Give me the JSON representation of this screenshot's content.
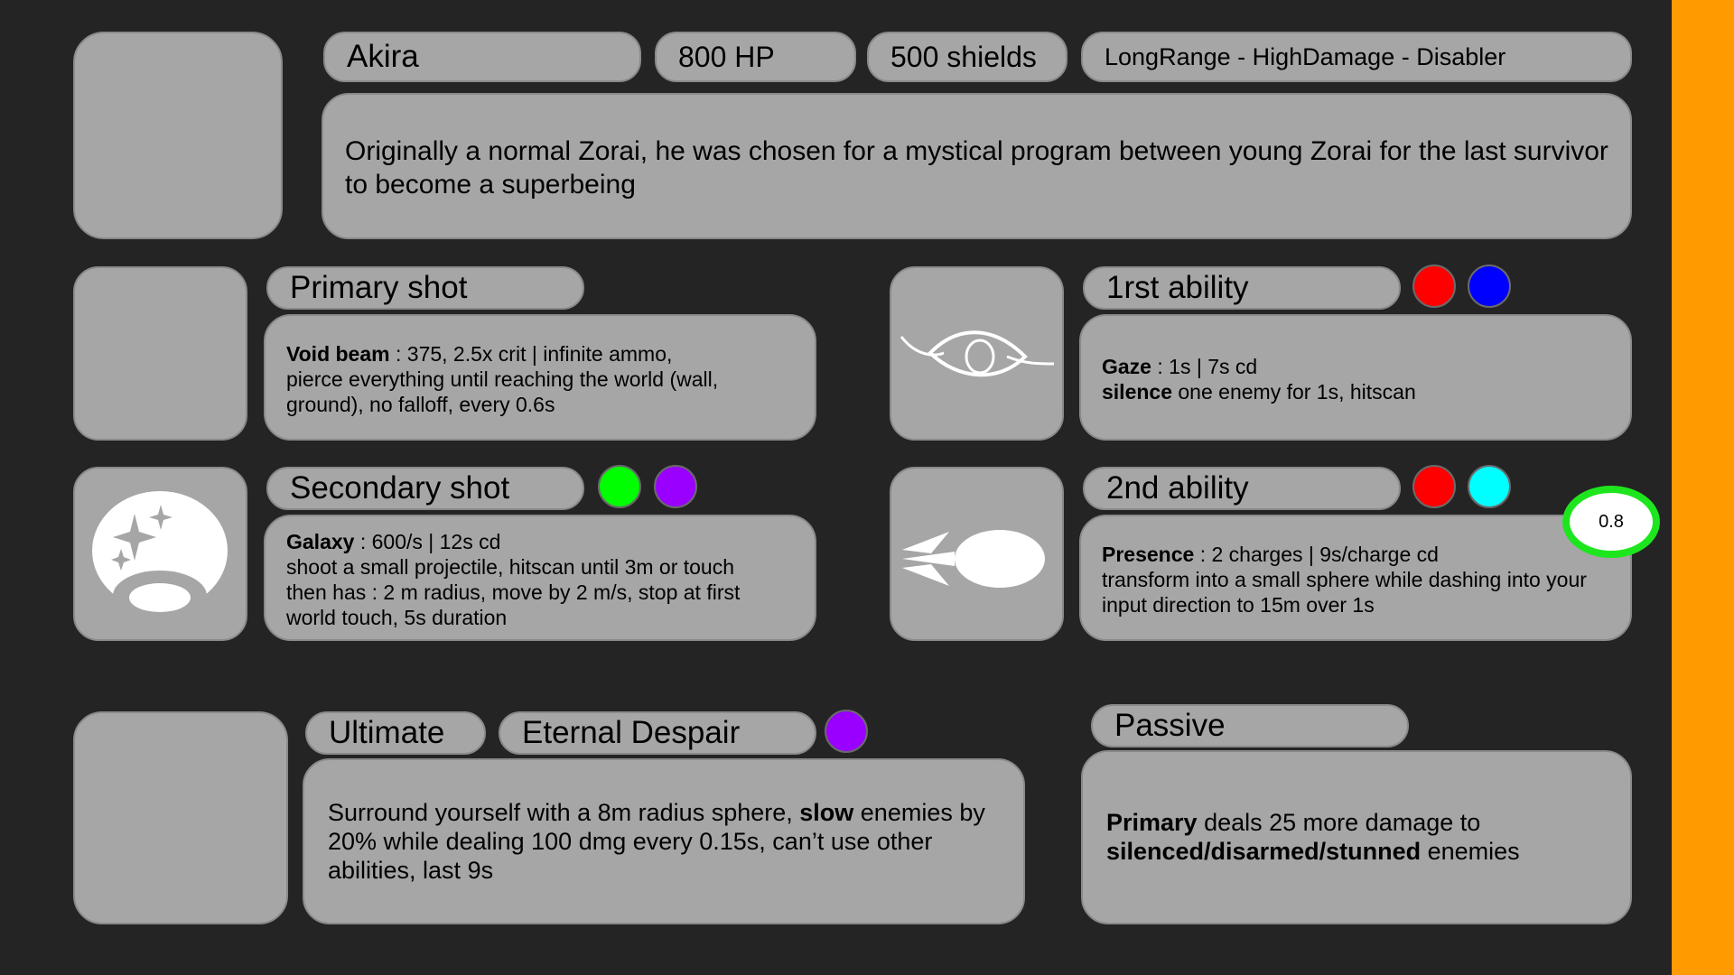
{
  "header": {
    "name": "Akira",
    "hp": "800 HP",
    "shields": "500 shields",
    "tags": "LongRange - HighDamage - Disabler",
    "lore": "Originally a normal Zorai, he was chosen for a mystical program between young Zorai for the last survivor to become a superbeing"
  },
  "primary": {
    "title": "Primary shot",
    "name": "Void beam",
    "line1_rest": " : 375, 2.5x crit | infinite ammo,",
    "line2": "pierce everything until reaching the world (wall,",
    "line3": "ground), no falloff, every 0.6s"
  },
  "secondary": {
    "title": "Secondary shot",
    "name": "Galaxy",
    "line1_rest": " : 600/s | 12s cd",
    "line2": "shoot a small projectile, hitscan until 3m or touch",
    "line3": "then has : 2 m radius, move by 2 m/s, stop at first",
    "line4": "world touch, 5s duration",
    "colors": [
      "#00ff00",
      "#9900ff"
    ]
  },
  "ability1": {
    "title": "1rst ability",
    "name": "Gaze",
    "line1_rest": " : 1s | 7s cd",
    "effect": "silence",
    "effect_rest": " one enemy for 1s, hitscan",
    "colors": [
      "#ff0000",
      "#0000ff"
    ],
    "icon": "eye-icon"
  },
  "ability2": {
    "title": "2nd ability",
    "name": "Presence",
    "line1_rest": " : 2 charges | 9s/charge cd",
    "line2": "transform into a small sphere while dashing into your",
    "line3": "input direction to 15m over 1s",
    "colors": [
      "#ff0000",
      "#00ffff"
    ],
    "badge": "0.8",
    "icon": "dash-sphere-icon"
  },
  "ultimate": {
    "label": "Ultimate",
    "name": "Eternal Despair",
    "text_a": "Surround yourself with a 8m radius sphere, ",
    "text_bold": "slow",
    "text_b": " enemies by",
    "line2": "20% while dealing 100 dmg every 0.15s, can’t use other",
    "line3": "abilities, last 9s",
    "colors": [
      "#9900ff"
    ]
  },
  "passive": {
    "title": "Passive",
    "bold1": "Primary",
    "rest1": " deals 25 more damage to",
    "bold2": "silenced/disarmed/stunned",
    "rest2": " enemies"
  },
  "accent_color": "#ff9a00"
}
